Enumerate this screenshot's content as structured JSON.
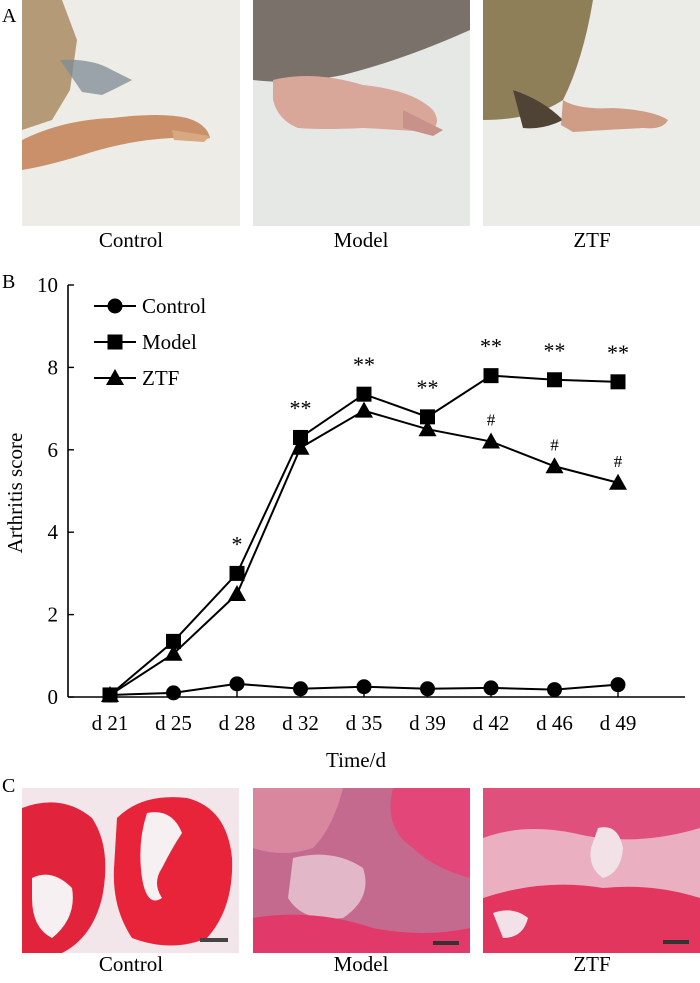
{
  "panels": {
    "a": {
      "letter": "A",
      "captions": [
        "Control",
        "Model",
        "ZTF"
      ]
    },
    "b": {
      "letter": "B"
    },
    "c": {
      "letter": "C",
      "captions": [
        "Control",
        "Model",
        "ZTF"
      ]
    }
  },
  "chart_data": {
    "type": "line",
    "xlabel": "Time/d",
    "ylabel": "Arthritis score",
    "categories": [
      "d 21",
      "d 25",
      "d 28",
      "d 32",
      "d 35",
      "d 39",
      "d 42",
      "d 46",
      "d 49"
    ],
    "ylim": [
      0,
      10
    ],
    "yticks": [
      0,
      2,
      4,
      6,
      8,
      10
    ],
    "legend_position": "top-left",
    "grid": false,
    "series": [
      {
        "name": "Control",
        "marker": "circle",
        "values": [
          0.05,
          0.1,
          0.32,
          0.2,
          0.25,
          0.2,
          0.22,
          0.18,
          0.3
        ]
      },
      {
        "name": "Model",
        "marker": "square",
        "values": [
          0.05,
          1.35,
          3.0,
          6.3,
          7.35,
          6.8,
          7.8,
          7.7,
          7.65
        ]
      },
      {
        "name": "ZTF",
        "marker": "triangle",
        "values": [
          0.05,
          1.05,
          2.5,
          6.05,
          6.95,
          6.5,
          6.2,
          5.6,
          5.2
        ]
      }
    ],
    "annotations": [
      {
        "category": "d 28",
        "text": "*",
        "y": 3.0
      },
      {
        "category": "d 32",
        "text": "**",
        "y": 6.3
      },
      {
        "category": "d 35",
        "text": "**",
        "y": 7.35
      },
      {
        "category": "d 39",
        "text": "**",
        "y": 6.8
      },
      {
        "category": "d 42",
        "text": "**",
        "y": 7.8
      },
      {
        "category": "d 46",
        "text": "**",
        "y": 7.7
      },
      {
        "category": "d 49",
        "text": "**",
        "y": 7.65
      },
      {
        "category": "d 42",
        "text": "#",
        "y": 6.2
      },
      {
        "category": "d 46",
        "text": "#",
        "y": 5.6
      },
      {
        "category": "d 49",
        "text": "#",
        "y": 5.2
      }
    ]
  }
}
